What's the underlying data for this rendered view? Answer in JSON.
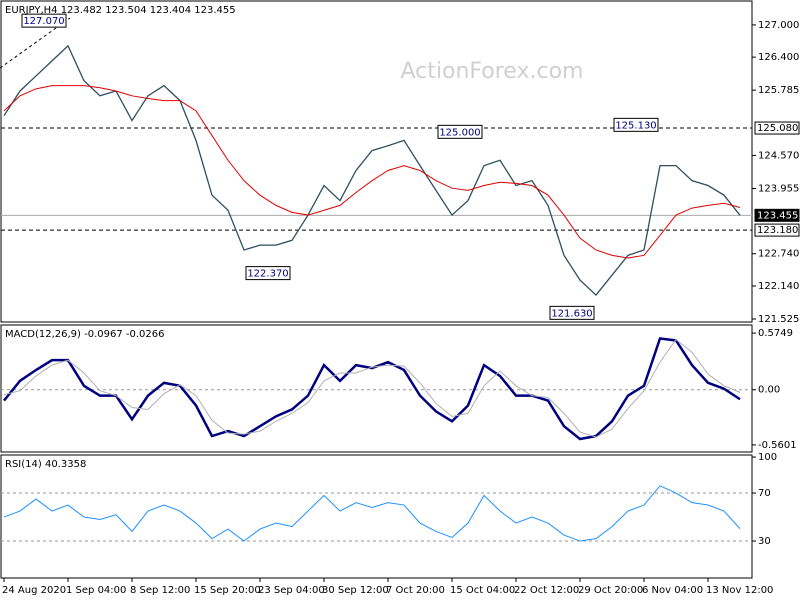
{
  "chart_data": [
    {
      "type": "line",
      "title": "EURJPY,H4  123.482 123.504 123.404 123.455",
      "watermark": "ActionForex.com",
      "categories": [
        "24 Aug 2020",
        null,
        null,
        null,
        "1 Sep 04:00",
        null,
        null,
        null,
        "8 Sep 12:00",
        null,
        null,
        null,
        "15 Sep 20:00",
        null,
        null,
        null,
        "23 Sep 04:00",
        null,
        null,
        null,
        "30 Sep 12:00",
        null,
        null,
        null,
        "7 Oct 20:00",
        null,
        null,
        null,
        "15 Oct 04:00",
        null,
        null,
        null,
        "22 Oct 12:00",
        null,
        null,
        null,
        "29 Oct 20:00",
        null,
        null,
        null,
        "6 Nov 04:00",
        null,
        null,
        null,
        "13 Nov 12:00",
        null,
        null
      ],
      "series": [
        {
          "color": "#2f4f5f",
          "width": 1.3,
          "values": [
            125.31,
            125.77,
            126.05,
            126.33,
            126.61,
            125.96,
            125.68,
            125.77,
            125.22,
            125.68,
            125.87,
            125.59,
            124.85,
            123.83,
            123.55,
            122.81,
            122.9,
            122.9,
            122.99,
            123.46,
            124.01,
            123.73,
            124.29,
            124.66,
            124.75,
            124.85,
            124.38,
            123.92,
            123.46,
            123.73,
            124.38,
            124.48,
            124.01,
            124.1,
            123.64,
            122.71,
            122.25,
            121.97,
            122.34,
            122.71,
            122.81,
            124.38,
            124.38,
            124.1,
            124.01,
            123.83,
            123.455
          ]
        },
        {
          "color": "#e00000",
          "width": 1,
          "values": [
            125.4,
            125.68,
            125.81,
            125.87,
            125.87,
            125.87,
            125.83,
            125.77,
            125.68,
            125.63,
            125.59,
            125.59,
            125.4,
            124.94,
            124.48,
            124.1,
            123.83,
            123.64,
            123.51,
            123.46,
            123.55,
            123.64,
            123.88,
            124.1,
            124.29,
            124.38,
            124.29,
            124.1,
            123.96,
            123.92,
            124.01,
            124.07,
            124.05,
            124.01,
            123.83,
            123.46,
            123.03,
            122.81,
            122.71,
            122.66,
            122.71,
            123.08,
            123.46,
            123.59,
            123.64,
            123.68,
            123.6
          ]
        }
      ],
      "ylim": [
        121.469,
        127.445
      ],
      "yticks": [
        {
          "value": 127.0,
          "label": "127.000"
        },
        {
          "value": 126.4,
          "label": "126.400"
        },
        {
          "value": 125.785,
          "label": "125.785"
        },
        {
          "value": 124.57,
          "label": "124.570"
        },
        {
          "value": 123.955,
          "label": "123.955"
        },
        {
          "value": 122.74,
          "label": "122.740"
        },
        {
          "value": 122.14,
          "label": "122.140"
        },
        {
          "value": 121.525,
          "label": "121.525"
        }
      ],
      "levels": [
        {
          "value": 125.08,
          "label": "125.080",
          "style": "dashed"
        },
        {
          "value": 123.18,
          "label": "123.180",
          "style": "dashed"
        },
        {
          "value": 123.455,
          "label": "123.455",
          "style": "current"
        }
      ],
      "annotations": [
        {
          "index": 4,
          "value": 127.07,
          "label": "127.070"
        },
        {
          "index": 30,
          "value": 125.0,
          "label": "125.000"
        },
        {
          "index": 41,
          "value": 125.13,
          "label": "125.130"
        },
        {
          "index": 18,
          "value": 122.37,
          "label": "122.370"
        },
        {
          "index": 37,
          "value": 121.63,
          "label": "121.630"
        }
      ]
    },
    {
      "type": "line",
      "title": "MACD(12,26,9) -0.0967 -0.0266",
      "series": [
        {
          "color": "#000080",
          "width": 2.5,
          "values": [
            -0.11,
            0.09,
            0.2,
            0.3,
            0.3,
            0.04,
            -0.06,
            -0.06,
            -0.3,
            -0.06,
            0.07,
            0.04,
            -0.16,
            -0.47,
            -0.42,
            -0.47,
            -0.37,
            -0.27,
            -0.2,
            -0.06,
            0.25,
            0.09,
            0.25,
            0.22,
            0.28,
            0.2,
            -0.06,
            -0.22,
            -0.32,
            -0.16,
            0.25,
            0.14,
            -0.06,
            -0.06,
            -0.11,
            -0.37,
            -0.5,
            -0.47,
            -0.32,
            -0.06,
            0.04,
            0.52,
            0.5,
            0.25,
            0.07,
            0.01,
            -0.0967
          ]
        },
        {
          "color": "#b0b0b0",
          "width": 1,
          "values": [
            -0.05,
            -0.01,
            0.14,
            0.25,
            0.3,
            0.17,
            -0.01,
            -0.06,
            -0.18,
            -0.2,
            -0.04,
            0.05,
            -0.06,
            -0.31,
            -0.44,
            -0.45,
            -0.42,
            -0.32,
            -0.24,
            -0.13,
            0.09,
            0.17,
            0.17,
            0.23,
            0.25,
            0.24,
            0.07,
            -0.14,
            -0.27,
            -0.24,
            0.04,
            0.19,
            0.04,
            -0.06,
            -0.08,
            -0.24,
            -0.43,
            -0.48,
            -0.4,
            -0.19,
            -0.01,
            0.28,
            0.51,
            0.38,
            0.16,
            0.04,
            -0.0266
          ]
        }
      ],
      "ylim": [
        -0.632,
        0.657
      ],
      "yticks": [
        {
          "value": 0.5749,
          "label": "0.5749"
        },
        {
          "value": 0,
          "label": "0.00"
        },
        {
          "value": -0.5601,
          "label": "-0.5601"
        }
      ],
      "gridticks": [
        1
      ]
    },
    {
      "type": "line",
      "title": "RSI(14) 40.3358",
      "series": [
        {
          "color": "#1e90ff",
          "width": 1,
          "values": [
            50,
            55,
            65,
            55,
            60,
            50,
            48,
            52,
            38,
            55,
            60,
            55,
            45,
            32,
            40,
            30,
            40,
            45,
            42,
            55,
            68,
            55,
            62,
            58,
            62,
            60,
            45,
            38,
            33,
            45,
            68,
            55,
            45,
            50,
            45,
            35,
            30,
            32,
            42,
            55,
            60,
            76,
            70,
            62,
            60,
            55,
            40.3358
          ]
        }
      ],
      "ylim": [
        -0.8,
        101.7
      ],
      "yticks": [
        100,
        70,
        30
      ],
      "gridticks": [
        1,
        2
      ]
    }
  ]
}
